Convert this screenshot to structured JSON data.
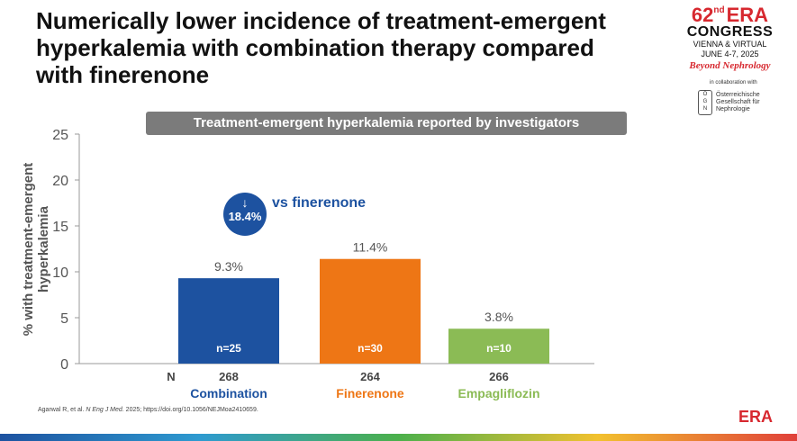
{
  "slide": {
    "title_lines": [
      "Numerically lower incidence of treatment-emergent",
      "hyperkalemia with combination therapy compared",
      "with finerenone"
    ],
    "reference_prefix": "Agarwal R, et al. ",
    "reference_journal": "N Eng J Med.",
    "reference_suffix": " 2025; https://doi.org/10.1056/NEJMoa2410659."
  },
  "logo": {
    "number": "62",
    "ordinal": "nd",
    "name": "ERA",
    "congress": "CONGRESS",
    "venue": "VIENNA & VIRTUAL",
    "date": "JUNE 4-7, 2025",
    "tagline": "Beyond Nephrology",
    "collab": "in collaboration with",
    "partner_letters": [
      "Ö",
      "G",
      "N"
    ],
    "partner_lines": [
      "Österreichische",
      "Gesellschaft für",
      "Nephrologie"
    ]
  },
  "callout": {
    "arrow": "↓",
    "value": "18.4%",
    "text": "vs finerenone"
  },
  "footer_logo": "ERA",
  "chart_data": {
    "type": "bar",
    "title": "Treatment-emergent hyperkalemia reported by investigators",
    "ylabel_lines": [
      "% with treatment-emergent",
      "hyperkalemia"
    ],
    "ylim": [
      0,
      25
    ],
    "yticks": [
      0,
      5,
      10,
      15,
      20,
      25
    ],
    "categories": [
      "Combination",
      "Finerenone",
      "Empagliflozin"
    ],
    "values": [
      9.3,
      11.4,
      3.8
    ],
    "value_labels": [
      "9.3%",
      "11.4%",
      "3.8%"
    ],
    "events": [
      "n=25",
      "n=30",
      "n=10"
    ],
    "n_label": "N",
    "n_values": [
      "268",
      "264",
      "266"
    ],
    "colors": [
      "#1d52a0",
      "#ee7615",
      "#8bbb55"
    ]
  }
}
